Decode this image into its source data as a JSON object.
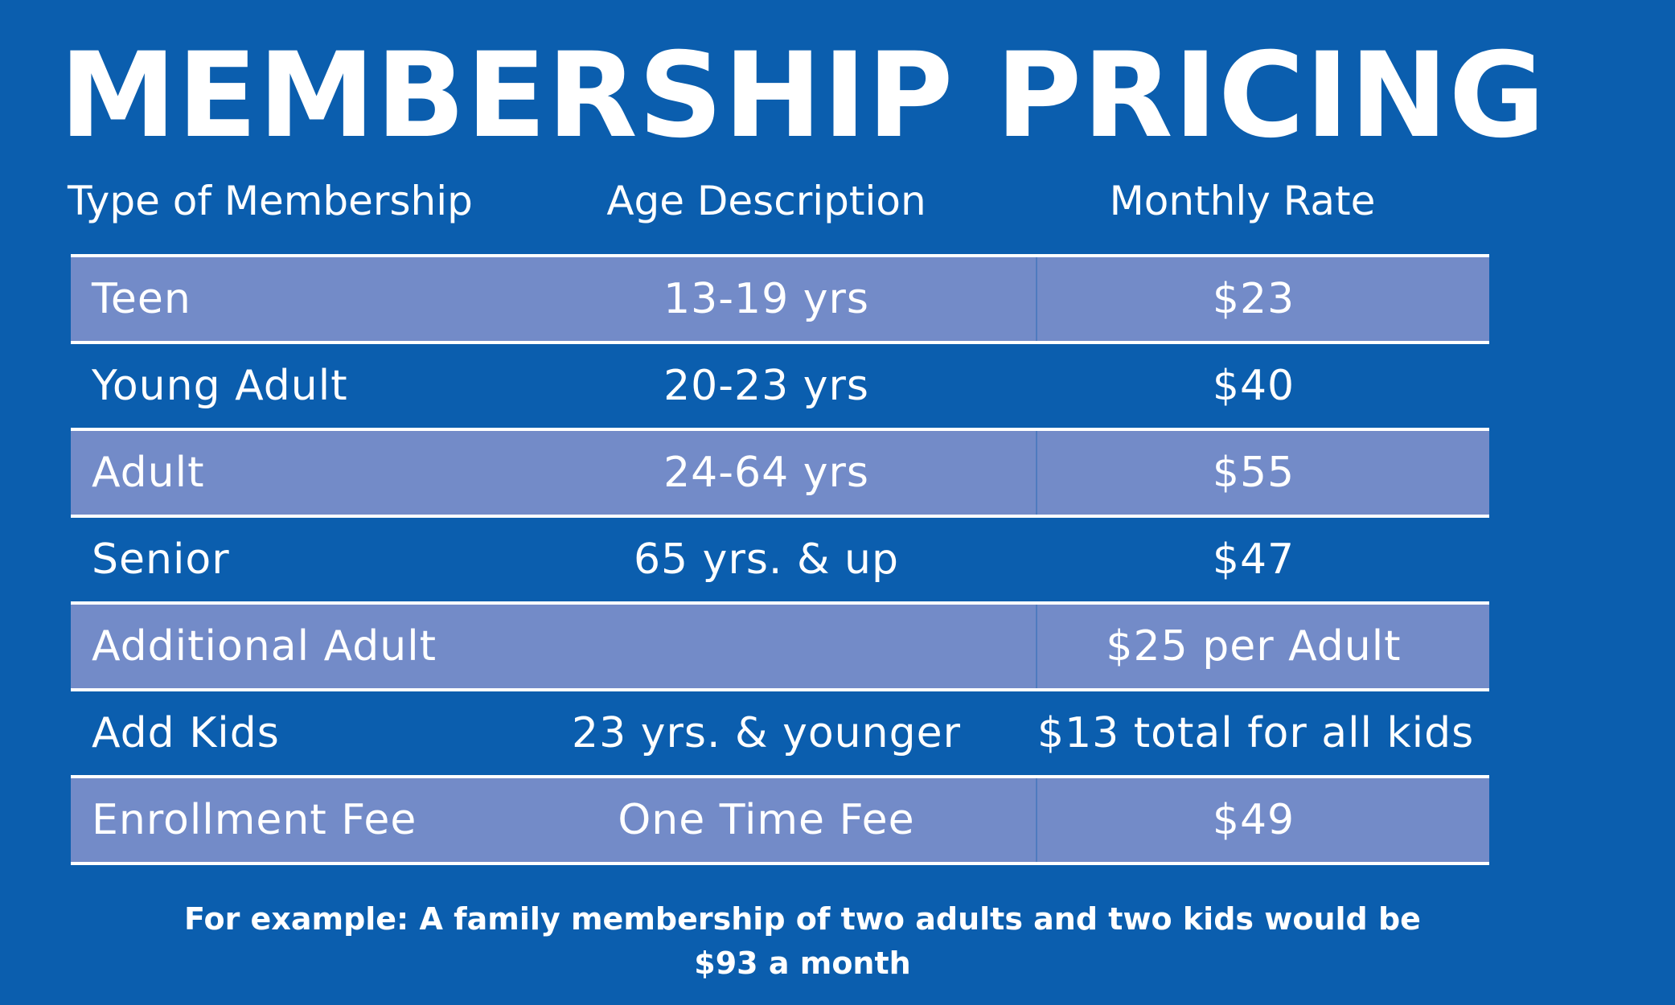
{
  "title": "MEMBERSHIP PRICING",
  "headers": {
    "type": "Type of Membership",
    "age": "Age Description",
    "rate": "Monthly Rate"
  },
  "rows": [
    {
      "type": "Teen",
      "age": "13-19 yrs",
      "rate": "$23",
      "shaded": true
    },
    {
      "type": "Young Adult",
      "age": "20-23 yrs",
      "rate": "$40",
      "shaded": false
    },
    {
      "type": "Adult",
      "age": "24-64 yrs",
      "rate": "$55",
      "shaded": true
    },
    {
      "type": "Senior",
      "age": "65 yrs. & up",
      "rate": "$47",
      "shaded": false
    },
    {
      "type": "Additional Adult",
      "age": "",
      "rate": "$25 per Adult",
      "shaded": true
    },
    {
      "type": "Add Kids",
      "age": "23 yrs. & younger",
      "rate": "$13 total for all kids",
      "shaded": false
    },
    {
      "type": "Enrollment Fee",
      "age": "One Time Fee",
      "rate": "$49",
      "shaded": true
    }
  ],
  "note": {
    "line1": "For example: A family membership of two adults and two kids would be",
    "line2": "$93 a month"
  },
  "colors": {
    "background": "#0b5eae",
    "row_shade": "#738bc8",
    "text": "#ffffff"
  }
}
